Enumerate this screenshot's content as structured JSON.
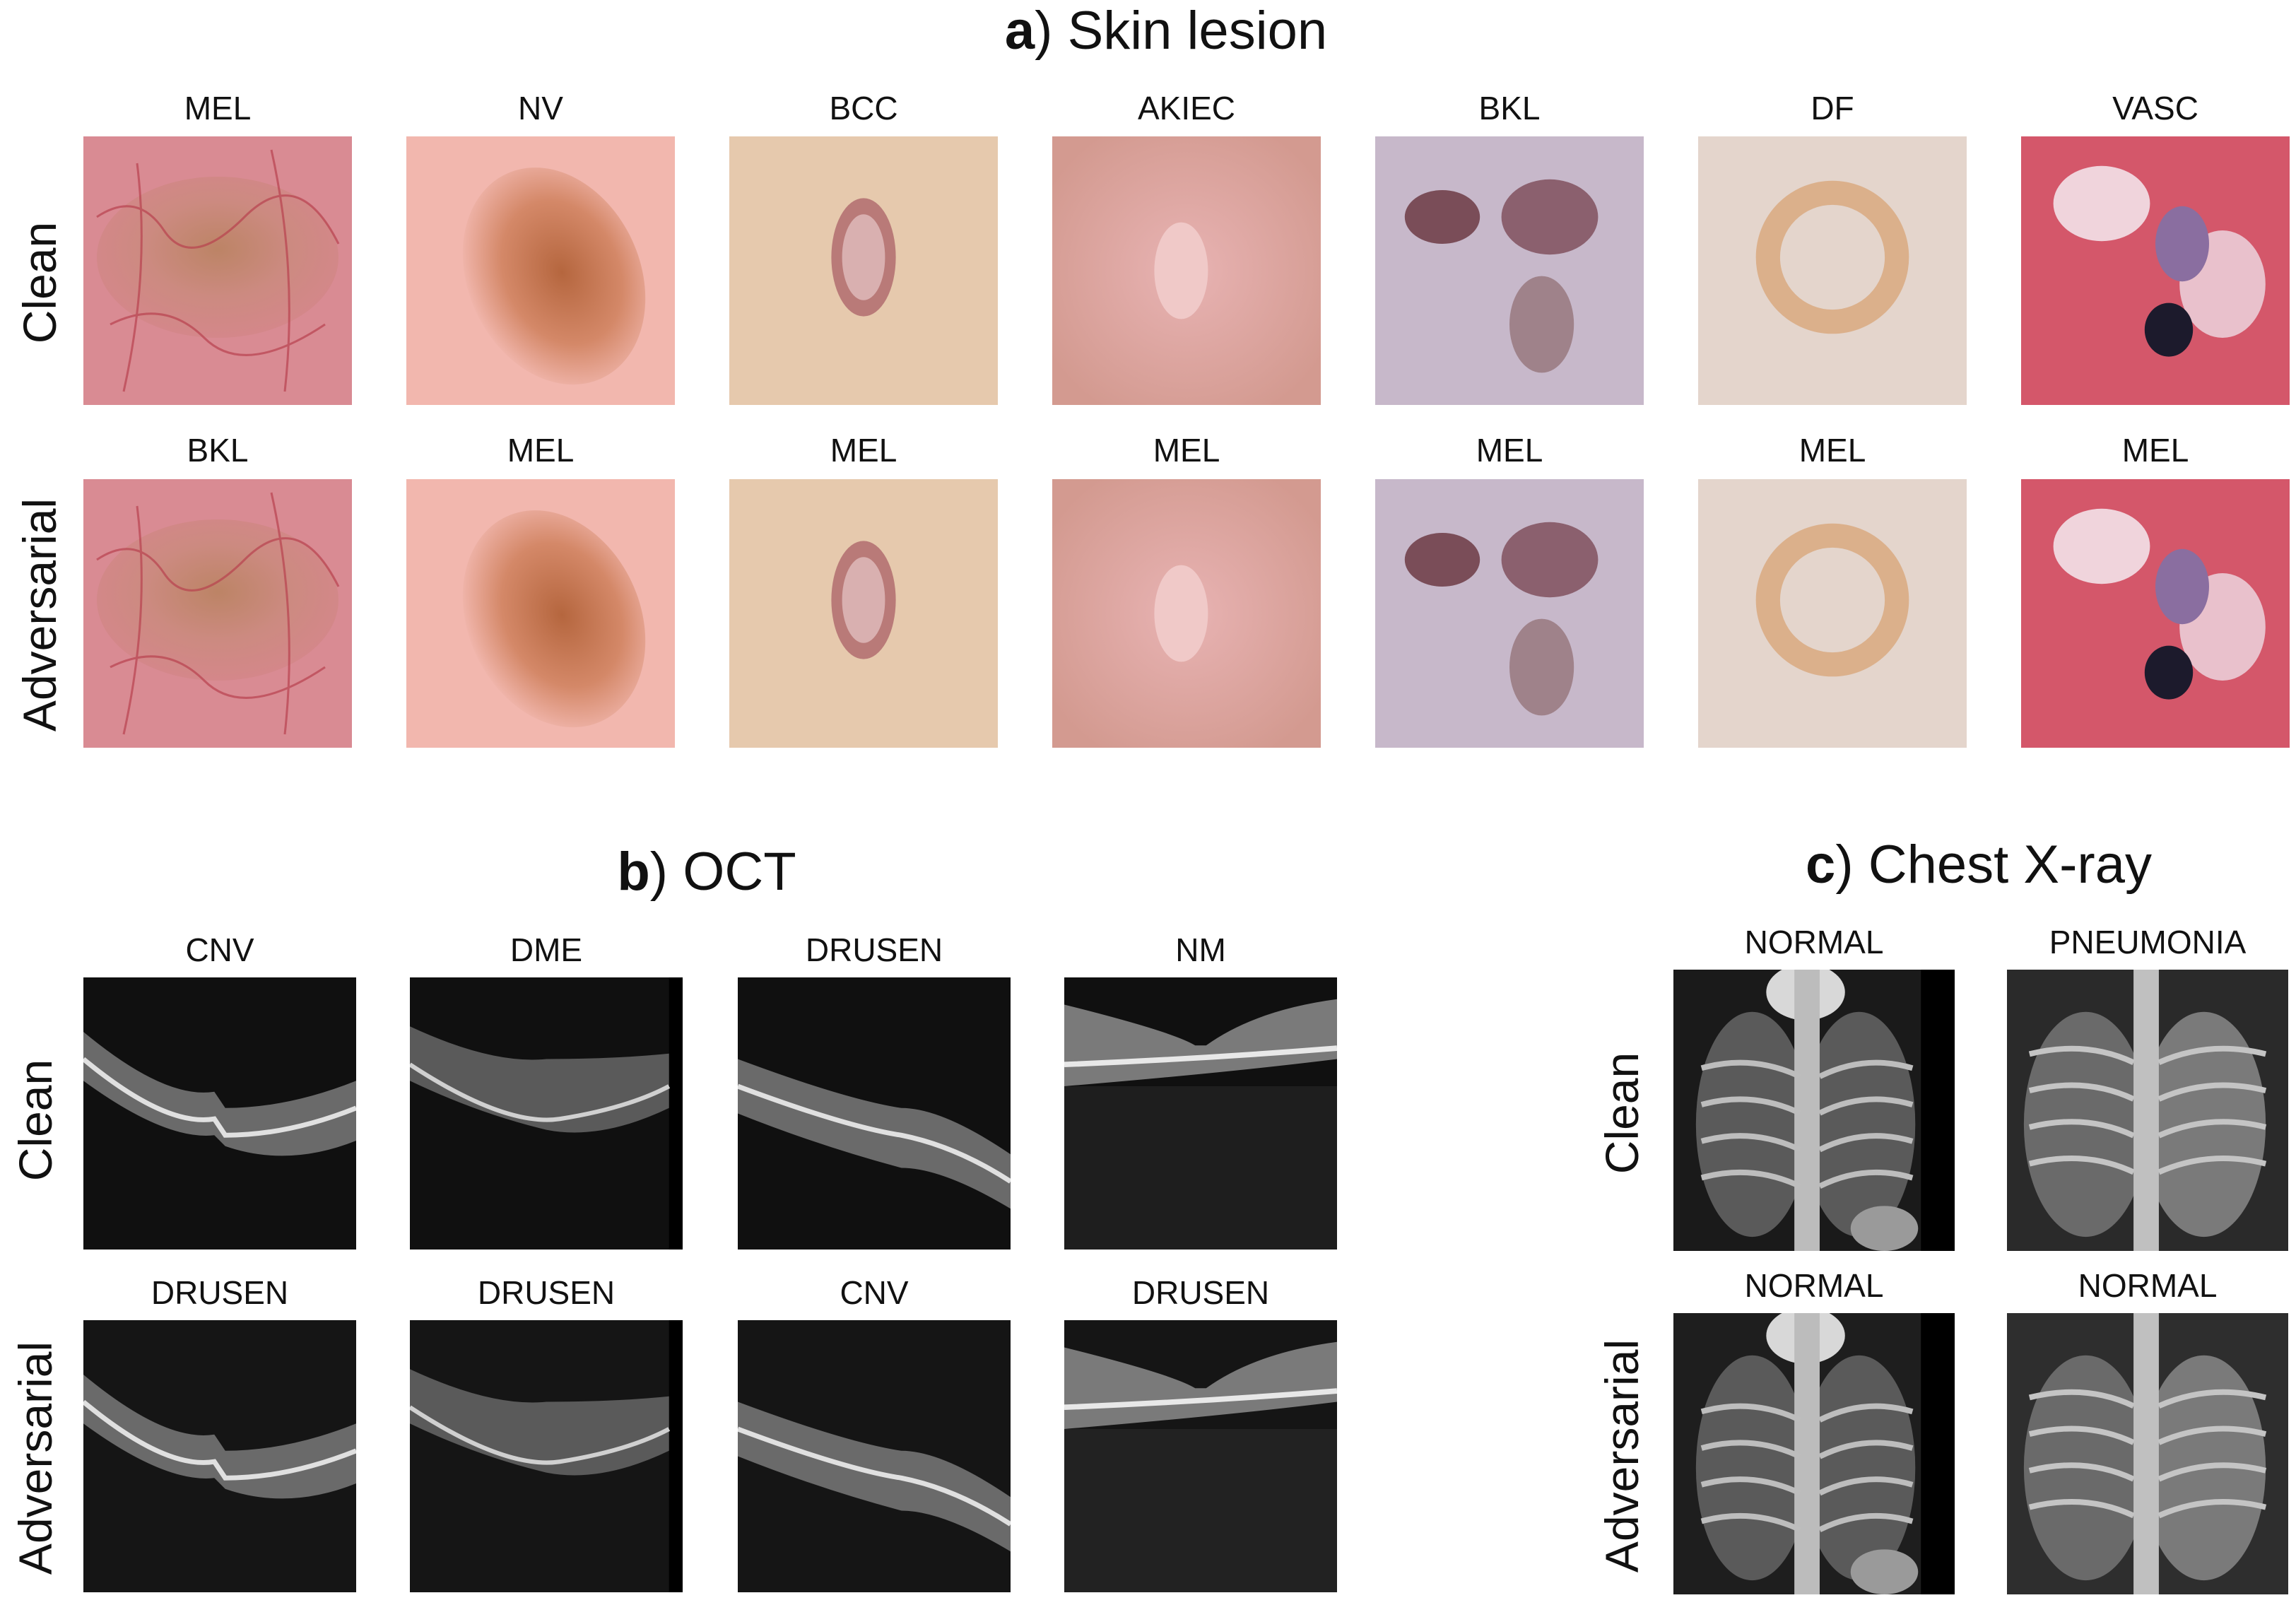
{
  "figure": {
    "panel_a": {
      "letter": "a",
      "title": ") Skin lesion",
      "row_labels": [
        "Clean",
        "Adversarial"
      ],
      "clean_labels": [
        "MEL",
        "NV",
        "BCC",
        "AKIEC",
        "BKL",
        "DF",
        "VASC"
      ],
      "adversarial_labels": [
        "BKL",
        "MEL",
        "MEL",
        "MEL",
        "MEL",
        "MEL",
        "MEL"
      ]
    },
    "panel_b": {
      "letter": "b",
      "title": ") OCT",
      "row_labels": [
        "Clean",
        "Adversarial"
      ],
      "clean_labels": [
        "CNV",
        "DME",
        "DRUSEN",
        "NM"
      ],
      "adversarial_labels": [
        "DRUSEN",
        "DRUSEN",
        "CNV",
        "DRUSEN"
      ]
    },
    "panel_c": {
      "letter": "c",
      "title": ") Chest X-ray",
      "row_labels": [
        "Clean",
        "Adversarial"
      ],
      "clean_labels": [
        "NORMAL",
        "PNEUMONIA"
      ],
      "adversarial_labels": [
        "NORMAL",
        "NORMAL"
      ]
    },
    "colors": {
      "background": "#ffffff",
      "text": "#111111",
      "oct_background": "#101010",
      "xray_background": "#1a1a1a"
    }
  }
}
